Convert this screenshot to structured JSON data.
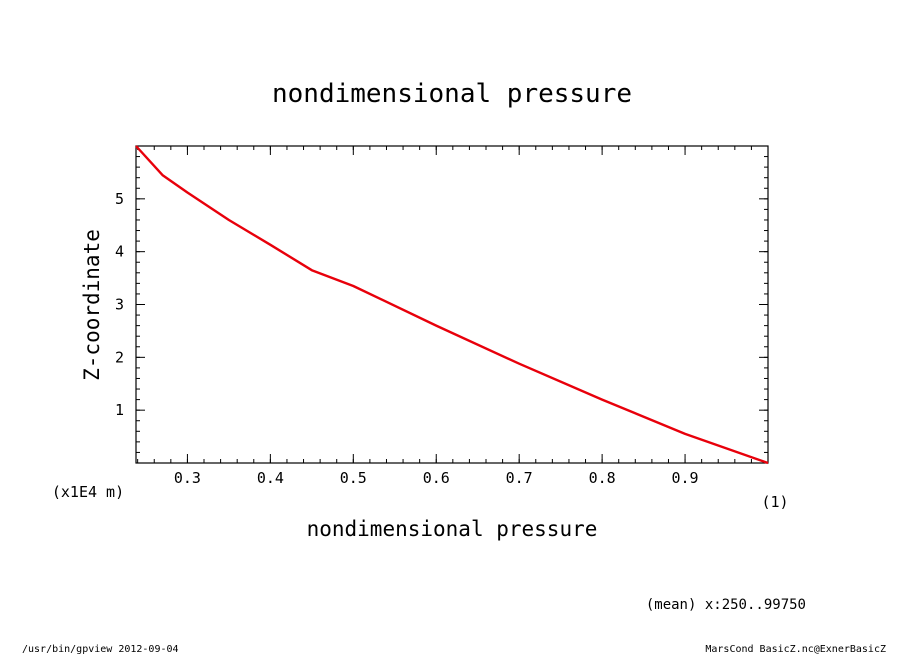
{
  "chart_data": {
    "type": "line",
    "title": "nondimensional pressure",
    "xlabel": "nondimensional pressure",
    "ylabel": "Z-coordinate",
    "x_unit": "(1)",
    "y_unit": "(x1E4 m)",
    "xlim": [
      0.238,
      1.0
    ],
    "ylim": [
      0,
      6.0
    ],
    "x_ticks": [
      "0.3",
      "0.4",
      "0.5",
      "0.6",
      "0.7",
      "0.8",
      "0.9"
    ],
    "y_ticks": [
      "1",
      "2",
      "3",
      "4",
      "5"
    ],
    "grid": false,
    "series": [
      {
        "color": "#e8000b",
        "x": [
          1.0,
          0.9,
          0.8,
          0.7,
          0.6,
          0.5,
          0.45,
          0.4,
          0.35,
          0.3,
          0.27,
          0.238
        ],
        "y": [
          0.0,
          0.55,
          1.2,
          1.88,
          2.6,
          3.35,
          3.65,
          4.13,
          4.6,
          5.12,
          5.45,
          6.0
        ]
      }
    ],
    "annotation": "(mean) x:250..99750"
  },
  "footer": {
    "left": "/usr/bin/gpview  2012-09-04",
    "right": "MarsCond_BasicZ.nc@ExnerBasicZ"
  }
}
